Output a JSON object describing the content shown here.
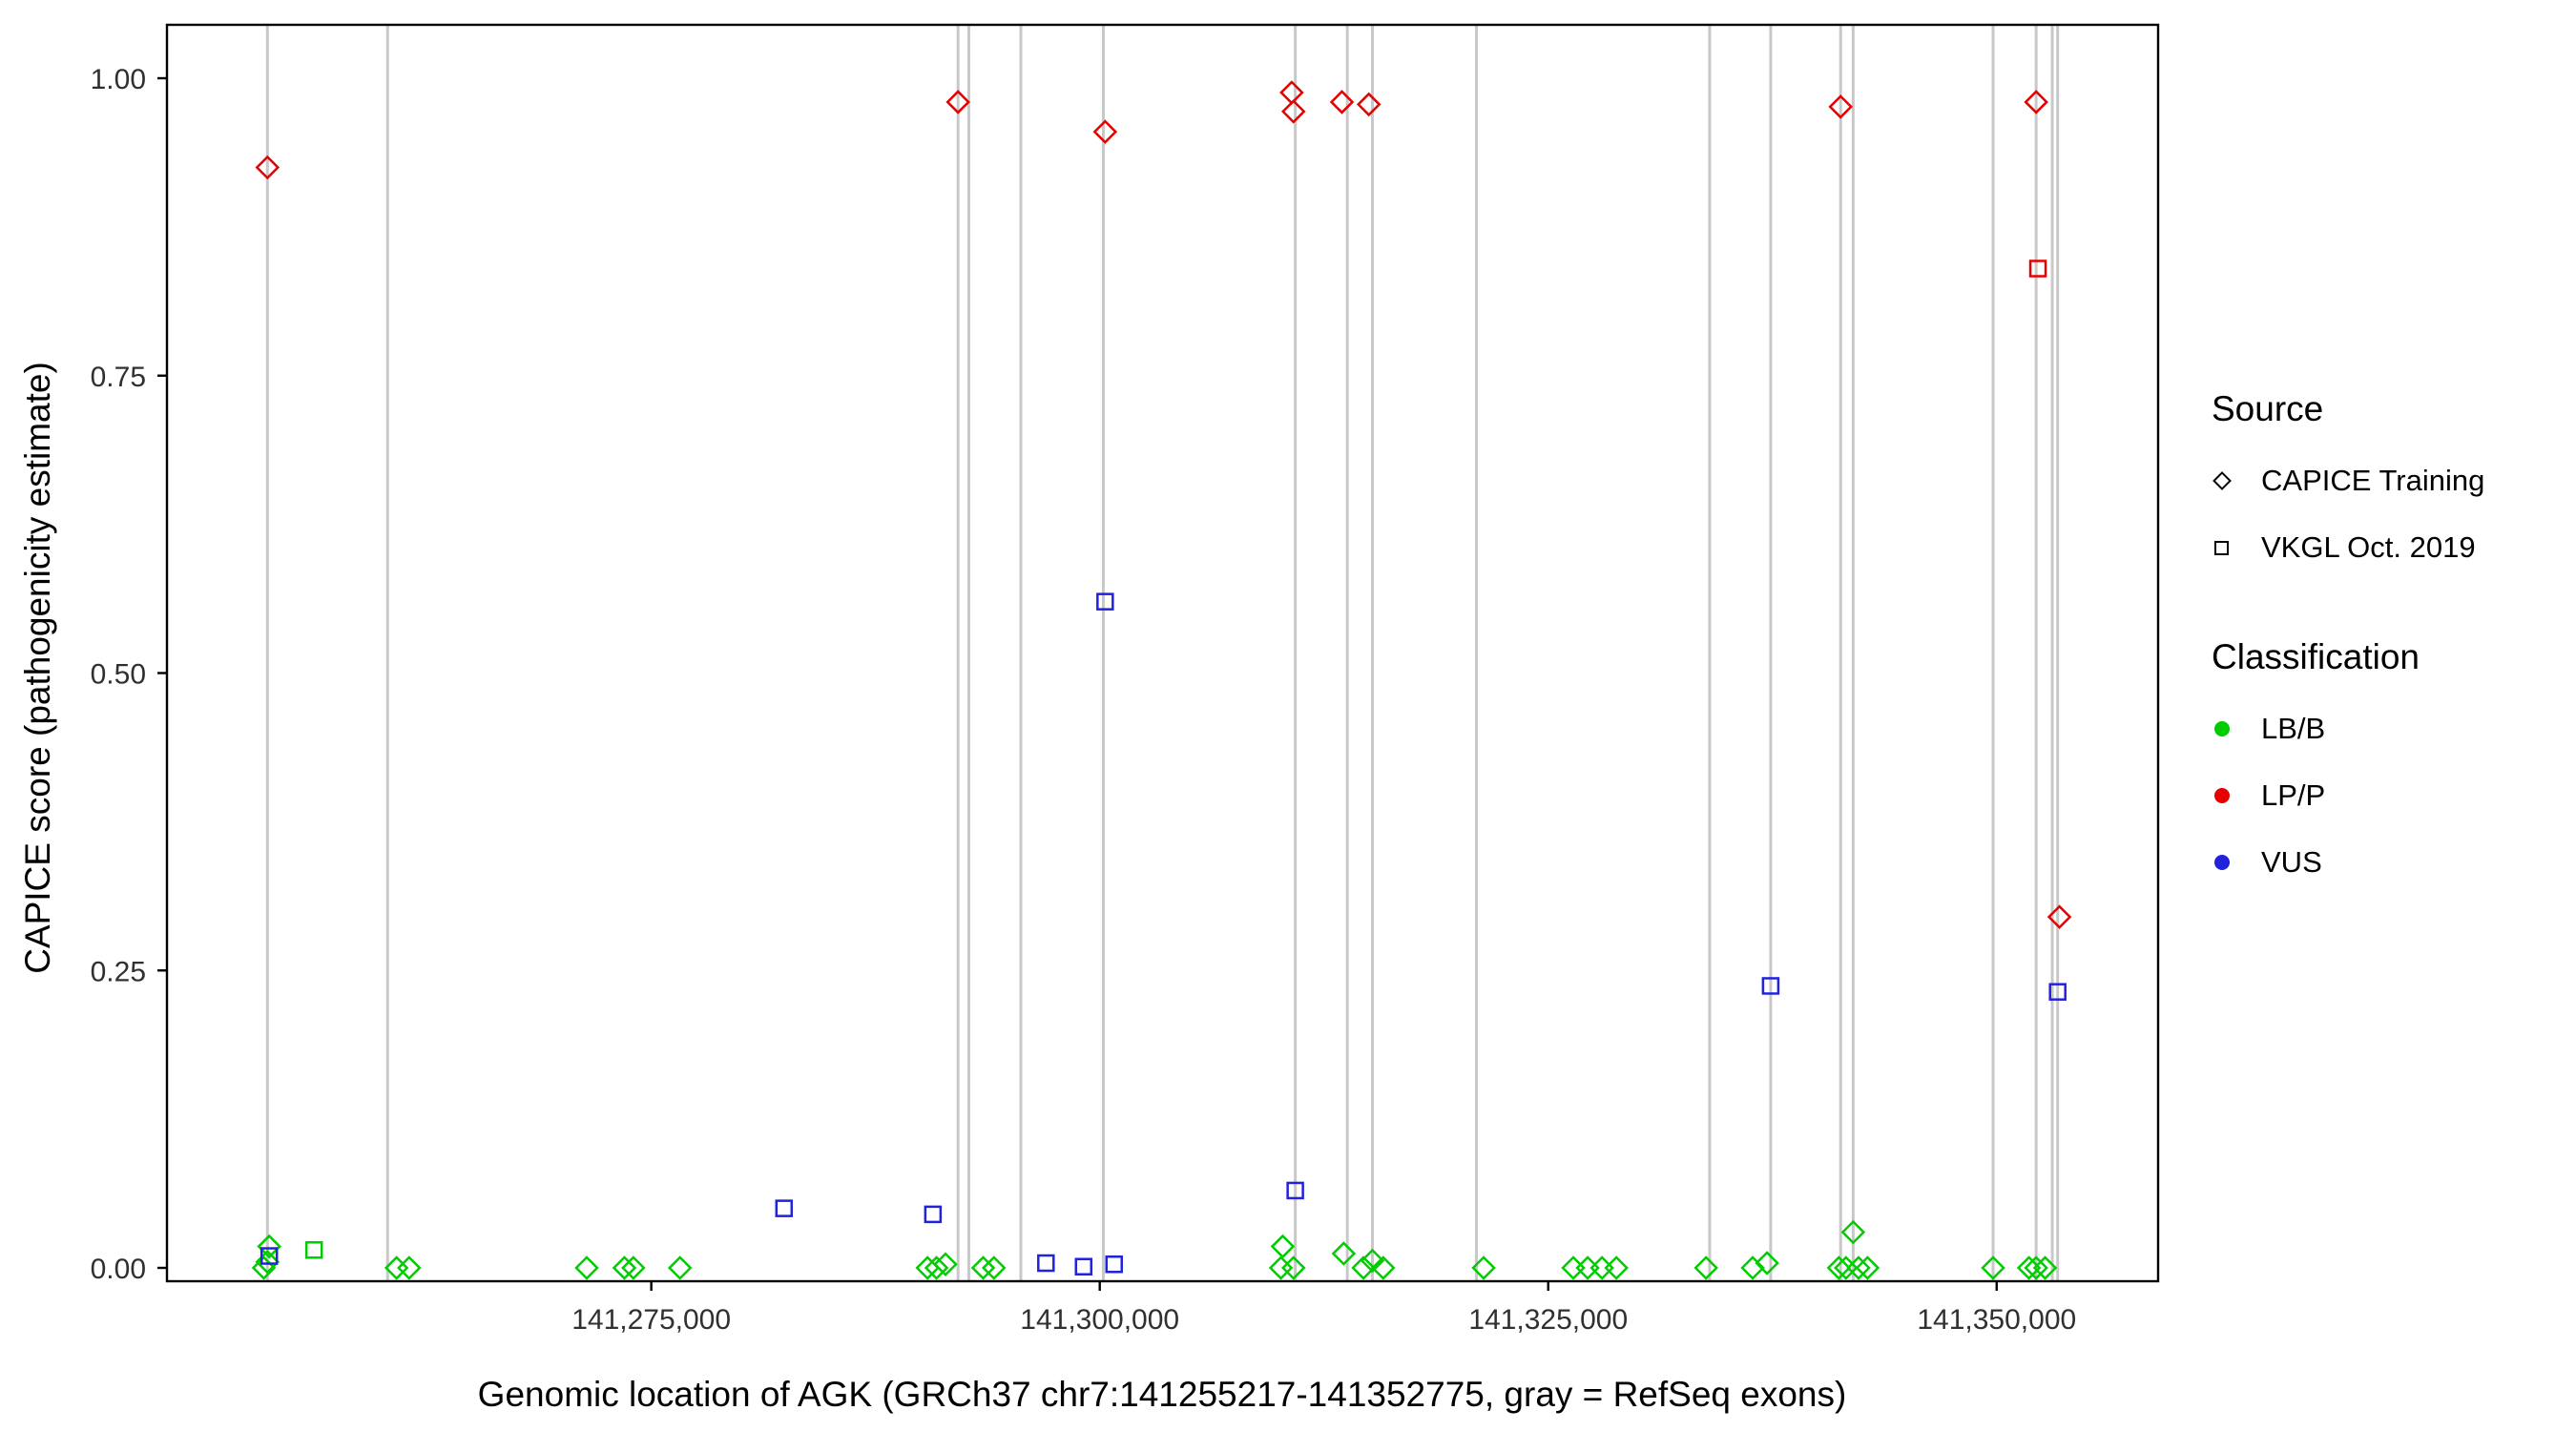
{
  "legend": {
    "source_title": "Source",
    "source_items": [
      {
        "label": "CAPICE Training",
        "shape": "diamond"
      },
      {
        "label": "VKGL Oct. 2019",
        "shape": "square"
      }
    ],
    "classification_title": "Classification",
    "classification_items": [
      {
        "label": "LB/B",
        "color": "#00CC00"
      },
      {
        "label": "LP/P",
        "color": "#E60000"
      },
      {
        "label": "VUS",
        "color": "#2222DD"
      }
    ]
  },
  "chart_data": {
    "type": "scatter",
    "title": "",
    "xlabel": "Genomic location of AGK (GRCh37 chr7:141255217-141352775, gray = RefSeq exons)",
    "ylabel": "CAPICE score (pathogenicity estimate)",
    "x_domain": [
      141248000,
      141359000
    ],
    "y_domain": [
      0,
      1
    ],
    "grid": "off",
    "legend_position": "right",
    "x_ticks": [
      {
        "value": 141275000,
        "label": "141,275,000"
      },
      {
        "value": 141300000,
        "label": "141,300,000"
      },
      {
        "value": 141325000,
        "label": "141,325,000"
      },
      {
        "value": 141350000,
        "label": "141,350,000"
      }
    ],
    "y_ticks": [
      {
        "value": 0.0,
        "label": "0.00"
      },
      {
        "value": 0.25,
        "label": "0.25"
      },
      {
        "value": 0.5,
        "label": "0.50"
      },
      {
        "value": 0.75,
        "label": "0.75"
      },
      {
        "value": 1.0,
        "label": "1.00"
      }
    ],
    "colors": {
      "lb_b": "#00CC00",
      "lp_p": "#E60000",
      "vus": "#2222DD",
      "exon_line": "#C8C8C8",
      "panel_border": "#000000"
    },
    "exon_lines": [
      141253600,
      141260300,
      141292100,
      141292700,
      141295600,
      141300200,
      141310900,
      141313800,
      141315200,
      141321000,
      141334000,
      141337400,
      141341300,
      141342000,
      141349800,
      141352200,
      141353100,
      141353400
    ],
    "series": [
      {
        "name": "LB/B - CAPICE Training",
        "classification": "LB/B",
        "source": "CAPICE Training",
        "shape": "diamond",
        "color": "#00CC00",
        "points": [
          [
            141253400,
            0.0
          ],
          [
            141253600,
            0.005
          ],
          [
            141253700,
            0.018
          ],
          [
            141260800,
            0.0
          ],
          [
            141261500,
            0.0
          ],
          [
            141271400,
            0.0
          ],
          [
            141273500,
            0.0
          ],
          [
            141274000,
            0.0
          ],
          [
            141276600,
            0.0
          ],
          [
            141290400,
            0.0
          ],
          [
            141290900,
            0.0
          ],
          [
            141291400,
            0.003
          ],
          [
            141293500,
            0.0
          ],
          [
            141294100,
            0.0
          ],
          [
            141310100,
            0.0
          ],
          [
            141310200,
            0.018
          ],
          [
            141310800,
            0.0
          ],
          [
            141313600,
            0.012
          ],
          [
            141314700,
            0.0
          ],
          [
            141315200,
            0.006
          ],
          [
            141315800,
            0.0
          ],
          [
            141321400,
            0.0
          ],
          [
            141326400,
            0.0
          ],
          [
            141327200,
            0.0
          ],
          [
            141328000,
            0.0
          ],
          [
            141328800,
            0.0
          ],
          [
            141333800,
            0.0
          ],
          [
            141336400,
            0.0
          ],
          [
            141337200,
            0.004
          ],
          [
            141341200,
            0.0
          ],
          [
            141341600,
            0.0
          ],
          [
            141342000,
            0.03
          ],
          [
            141342300,
            0.0
          ],
          [
            141342800,
            0.0
          ],
          [
            141349800,
            0.0
          ],
          [
            141351800,
            0.0
          ],
          [
            141352200,
            0.0
          ],
          [
            141352700,
            0.0
          ]
        ]
      },
      {
        "name": "LB/B - VKGL Oct. 2019",
        "classification": "LB/B",
        "source": "VKGL Oct. 2019",
        "shape": "square",
        "color": "#00CC00",
        "points": [
          [
            141256200,
            0.015
          ]
        ]
      },
      {
        "name": "VUS - VKGL Oct. 2019",
        "classification": "VUS",
        "source": "VKGL Oct. 2019",
        "shape": "square",
        "color": "#2222DD",
        "points": [
          [
            141253700,
            0.01
          ],
          [
            141282400,
            0.05
          ],
          [
            141290700,
            0.045
          ],
          [
            141297000,
            0.004
          ],
          [
            141299100,
            0.001
          ],
          [
            141300800,
            0.003
          ],
          [
            141300300,
            0.56
          ],
          [
            141310900,
            0.065
          ],
          [
            141337400,
            0.237
          ],
          [
            141353400,
            0.232
          ]
        ]
      },
      {
        "name": "LP/P - CAPICE Training",
        "classification": "LP/P",
        "source": "CAPICE Training",
        "shape": "diamond",
        "color": "#E60000",
        "points": [
          [
            141253600,
            0.925
          ],
          [
            141292100,
            0.98
          ],
          [
            141300300,
            0.955
          ],
          [
            141310700,
            0.988
          ],
          [
            141310800,
            0.972
          ],
          [
            141313500,
            0.98
          ],
          [
            141315000,
            0.978
          ],
          [
            141341300,
            0.976
          ],
          [
            141352200,
            0.98
          ],
          [
            141353500,
            0.295
          ]
        ]
      },
      {
        "name": "LP/P - VKGL Oct. 2019",
        "classification": "LP/P",
        "source": "VKGL Oct. 2019",
        "shape": "square",
        "color": "#E60000",
        "points": [
          [
            141352300,
            0.84
          ]
        ]
      }
    ]
  }
}
